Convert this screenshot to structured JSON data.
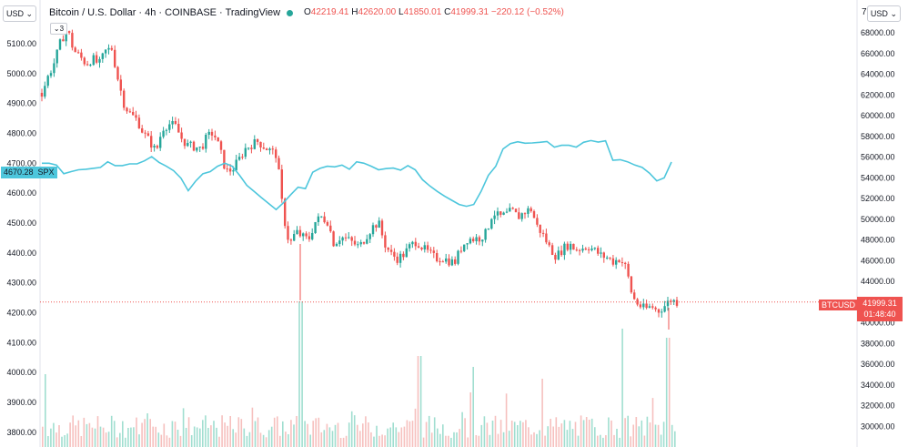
{
  "header": {
    "currency_left": "USD",
    "currency_right": "USD",
    "title": "Bitcoin / U.S. Dollar · 4h · COINBASE · TradingView",
    "ohlc_o_label": "O",
    "ohlc_o": "42219.41",
    "ohlc_h_label": "H",
    "ohlc_h": "42620.00",
    "ohlc_l_label": "L",
    "ohlc_l": "41850.01",
    "ohlc_c_label": "C",
    "ohlc_c": "41999.31",
    "ohlc_change": "−220.12 (−0.52%)",
    "indicator_count": "3",
    "axis_cutoff": "7("
  },
  "overlay": {
    "spx_value": "4670.28",
    "spx_label": "SPX",
    "btc_label": "BTCUSD",
    "btc_price": "41999.31",
    "countdown": "01:48:40"
  },
  "chart_data": {
    "type": "candlestick",
    "title": "Bitcoin / U.S. Dollar · 4h · COINBASE · TradingView",
    "left_axis": {
      "ticks": [
        "5100.00",
        "5000.00",
        "4900.00",
        "4800.00",
        "4700.00",
        "4600.00",
        "4500.00",
        "4400.00",
        "4300.00",
        "4200.00",
        "4100.00",
        "4000.00",
        "3900.00",
        "3800.00"
      ],
      "range": [
        3750,
        5175
      ]
    },
    "right_axis": {
      "ticks": [
        "68000.00",
        "66000.00",
        "64000.00",
        "62000.00",
        "60000.00",
        "58000.00",
        "56000.00",
        "54000.00",
        "52000.00",
        "50000.00",
        "48000.00",
        "46000.00",
        "44000.00",
        "42000.00",
        "40000.00",
        "38000.00",
        "36000.00",
        "34000.00",
        "32000.00",
        "30000.00"
      ],
      "range": [
        29500,
        69500
      ]
    },
    "btc_close_path": [
      62200,
      63800,
      65200,
      67200,
      68400,
      66300,
      65700,
      65000,
      65500,
      64900,
      66200,
      66500,
      63500,
      61000,
      60100,
      59600,
      58300,
      57500,
      56500,
      58800,
      59200,
      59000,
      57800,
      57100,
      57000,
      56800,
      57900,
      58400,
      56800,
      54600,
      54800,
      55700,
      56800,
      57200,
      57500,
      57000,
      56600,
      56200,
      50500,
      47500,
      48800,
      48300,
      48000,
      49700,
      50200,
      49800,
      47600,
      48300,
      48100,
      47700,
      47300,
      48300,
      49200,
      49700,
      47600,
      46600,
      46200,
      46600,
      47400,
      47900,
      47200,
      46700,
      46200,
      46300,
      46000,
      45800,
      47200,
      48100,
      48100,
      48200,
      48700,
      50700,
      50200,
      50400,
      50800,
      50200,
      50700,
      51000,
      49300,
      48400,
      47200,
      46400,
      47100,
      47600,
      47100,
      47200,
      47400,
      47000,
      46500,
      46300,
      45900,
      46200,
      45300,
      42500,
      41700,
      41300,
      41600,
      41100,
      41600,
      42200,
      42000
    ],
    "spx_series": {
      "name": "SPX",
      "last": 4670.28,
      "values": [
        4700,
        4700,
        4694,
        4665,
        4672,
        4678,
        4680,
        4683,
        4686,
        4705,
        4692,
        4692,
        4698,
        4698,
        4708,
        4722,
        4703,
        4690,
        4675,
        4650,
        4608,
        4640,
        4665,
        4672,
        4690,
        4700,
        4690,
        4660,
        4626,
        4606,
        4585,
        4565,
        4545,
        4568,
        4595,
        4620,
        4615,
        4670,
        4683,
        4690,
        4688,
        4694,
        4680,
        4705,
        4700,
        4690,
        4678,
        4682,
        4684,
        4677,
        4692,
        4678,
        4645,
        4624,
        4606,
        4590,
        4576,
        4562,
        4556,
        4562,
        4606,
        4660,
        4690,
        4748,
        4766,
        4772,
        4767,
        4768,
        4770,
        4773,
        4754,
        4760,
        4760,
        4754,
        4770,
        4776,
        4771,
        4775,
        4710,
        4712,
        4705,
        4694,
        4686,
        4667,
        4641,
        4651,
        4704
      ]
    },
    "volume": {
      "relative_peaks": [
        0.62,
        0.55,
        0.76,
        0.9,
        0.48,
        0.34,
        0.58
      ]
    }
  }
}
